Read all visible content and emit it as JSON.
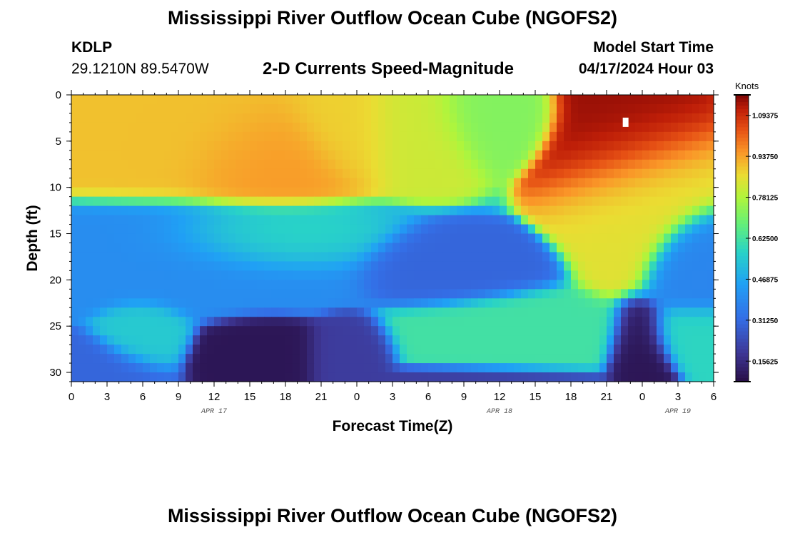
{
  "header": {
    "title": "Mississippi River Outflow Ocean Cube (NGOFS2)",
    "station_id": "KDLP",
    "station_coords": "29.1210N  89.5470W",
    "subtitle": "2-D Currents Speed-Magnitude",
    "model_start_label": "Model Start Time",
    "model_start_value": "04/17/2024 Hour 03"
  },
  "footer": {
    "title": "Mississippi River Outflow Ocean Cube (NGOFS2)"
  },
  "chart_data": {
    "type": "heatmap",
    "title": "2-D Currents Speed-Magnitude",
    "xlabel": "Forecast Time(Z)",
    "ylabel": "Depth (ft)",
    "xlim": [
      0,
      54
    ],
    "ylim": [
      31,
      0
    ],
    "x_ticks": [
      0,
      3,
      6,
      9,
      12,
      15,
      18,
      21,
      24,
      27,
      30,
      33,
      36,
      39,
      42,
      45,
      48,
      51,
      54
    ],
    "x_tick_labels": [
      "0",
      "3",
      "6",
      "9",
      "12",
      "15",
      "18",
      "21",
      "0",
      "3",
      "6",
      "9",
      "12",
      "15",
      "18",
      "21",
      "0",
      "3",
      "6"
    ],
    "date_labels": [
      {
        "x": 12,
        "label": "APR 17"
      },
      {
        "x": 36,
        "label": "APR 18"
      },
      {
        "x": 51,
        "label": "APR 19"
      }
    ],
    "y_ticks": [
      0,
      5,
      10,
      15,
      20,
      25,
      30
    ],
    "colorbar": {
      "title": "Knots",
      "range": [
        0.0781,
        1.1719
      ],
      "tick_values": [
        1.09375,
        0.9375,
        0.78125,
        0.625,
        0.46875,
        0.3125,
        0.15625
      ],
      "tick_labels": [
        "1.09375",
        "0.93750",
        "0.78125",
        "0.62500",
        "0.46875",
        "0.31250",
        "0.15625"
      ]
    },
    "grid": false,
    "marker": {
      "x": 46.6,
      "y": 3
    },
    "speed_centers": [
      {
        "x": 10,
        "y": 4,
        "value": 0.9,
        "sx": 7,
        "sy": 3.5
      },
      {
        "x": 16,
        "y": 6,
        "value": 0.95,
        "sx": 4,
        "sy": 3
      },
      {
        "x": 23,
        "y": 3,
        "value": 0.88,
        "sx": 3,
        "sy": 3
      },
      {
        "x": 29,
        "y": 3,
        "value": 0.82,
        "sx": 3,
        "sy": 3
      },
      {
        "x": 35,
        "y": 2,
        "value": 0.72,
        "sx": 3,
        "sy": 2.5
      },
      {
        "x": 46,
        "y": 4,
        "value": 1.15,
        "sx": 3,
        "sy": 5
      },
      {
        "x": 47,
        "y": 11,
        "value": 0.85,
        "sx": 3,
        "sy": 5
      },
      {
        "x": 16,
        "y": 16,
        "value": 0.6,
        "sx": 5,
        "sy": 2
      },
      {
        "x": 10,
        "y": 18,
        "value": 0.4,
        "sx": 8,
        "sy": 3
      },
      {
        "x": 32,
        "y": 19,
        "value": 0.3,
        "sx": 4,
        "sy": 2
      },
      {
        "x": 52,
        "y": 19,
        "value": 0.38,
        "sx": 2,
        "sy": 3
      },
      {
        "x": 6,
        "y": 26,
        "value": 0.55,
        "sx": 2,
        "sy": 2
      },
      {
        "x": 37,
        "y": 26,
        "value": 0.62,
        "sx": 5,
        "sy": 2.5
      },
      {
        "x": 52,
        "y": 26,
        "value": 0.58,
        "sx": 2,
        "sy": 2
      },
      {
        "x": 16,
        "y": 28,
        "value": 0.1,
        "sx": 3,
        "sy": 2
      },
      {
        "x": 23,
        "y": 28,
        "value": 0.2,
        "sx": 2,
        "sy": 2
      },
      {
        "x": 48,
        "y": 28,
        "value": 0.1,
        "sx": 1.5,
        "sy": 3
      },
      {
        "x": 2,
        "y": 30,
        "value": 0.3,
        "sx": 3,
        "sy": 2
      },
      {
        "x": 35,
        "y": 31,
        "value": 0.2,
        "sx": 5,
        "sy": 1
      }
    ]
  }
}
